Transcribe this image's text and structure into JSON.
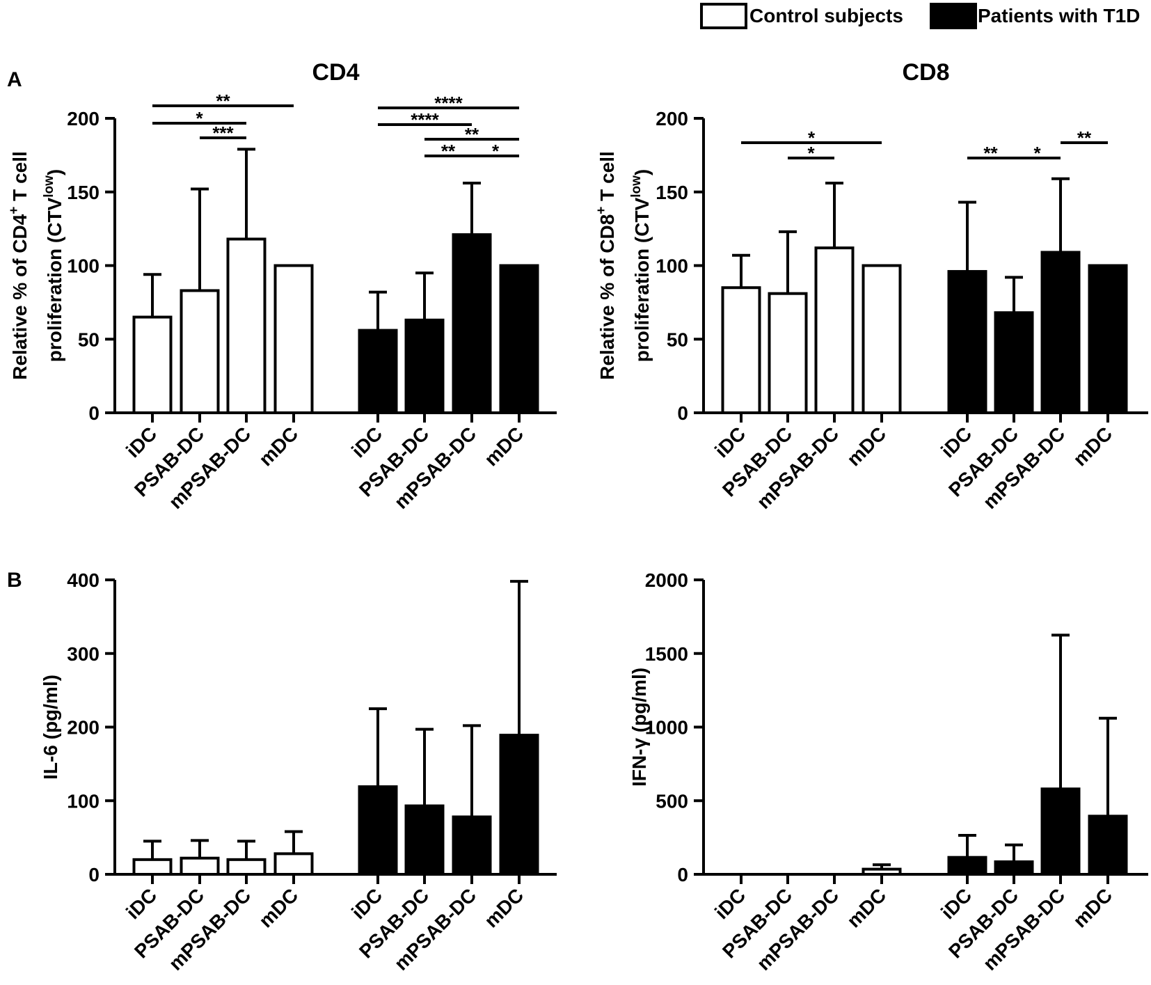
{
  "legend": {
    "placement": "top-right",
    "items": [
      {
        "label": "Control subjects",
        "fill": "#ffffff"
      },
      {
        "label": "Patients with T1D",
        "fill": "#000000"
      }
    ]
  },
  "panels": [
    {
      "letter": "A"
    },
    {
      "letter": "B"
    }
  ],
  "chart_data": [
    {
      "id": "cd4",
      "panel": "A",
      "type": "bar",
      "title": "CD4",
      "ylabel_line1": "Relative % of CD4",
      "ylabel_sup1": "+",
      "ylabel_line1_tail": " T cell",
      "ylabel_line2": "proliferation (CTV",
      "ylabel_sup2": "low",
      "ylabel_line2_tail": ")",
      "ylim": [
        0,
        200
      ],
      "ticks": [
        0,
        50,
        100,
        150,
        200
      ],
      "categories": [
        "iDC",
        "PSAB-DC",
        "mPSAB-DC",
        "mDC"
      ],
      "series": [
        {
          "name": "Control subjects",
          "values": [
            65,
            83,
            118,
            100
          ],
          "errors": [
            29,
            69,
            61,
            0
          ]
        },
        {
          "name": "Patients with T1D",
          "values": [
            56,
            63,
            121,
            100
          ],
          "errors": [
            26,
            32,
            35,
            0
          ]
        }
      ],
      "significance": [
        {
          "from": [
            0,
            0
          ],
          "to": [
            0,
            3
          ],
          "label": "**"
        },
        {
          "from": [
            0,
            0
          ],
          "to": [
            0,
            2
          ],
          "label": "*"
        },
        {
          "from": [
            0,
            1
          ],
          "to": [
            0,
            2
          ],
          "label": "***"
        },
        {
          "from": [
            1,
            0
          ],
          "to": [
            1,
            3
          ],
          "label": "****"
        },
        {
          "from": [
            1,
            0
          ],
          "to": [
            1,
            2
          ],
          "label": "****"
        },
        {
          "from": [
            1,
            1
          ],
          "to": [
            1,
            3
          ],
          "label": "**"
        },
        {
          "from": [
            1,
            1
          ],
          "to": [
            1,
            2
          ],
          "label": "**"
        },
        {
          "from": [
            1,
            2
          ],
          "to": [
            1,
            3
          ],
          "label": "*"
        }
      ]
    },
    {
      "id": "cd8",
      "panel": "A",
      "type": "bar",
      "title": "CD8",
      "ylabel_line1": "Relative % of CD8",
      "ylabel_sup1": "+",
      "ylabel_line1_tail": " T cell",
      "ylabel_line2": "proliferation (CTV",
      "ylabel_sup2": "low",
      "ylabel_line2_tail": ")",
      "ylim": [
        0,
        200
      ],
      "ticks": [
        0,
        50,
        100,
        150,
        200
      ],
      "categories": [
        "iDC",
        "PSAB-DC",
        "mPSAB-DC",
        "mDC"
      ],
      "series": [
        {
          "name": "Control subjects",
          "values": [
            85,
            81,
            112,
            100
          ],
          "errors": [
            22,
            42,
            44,
            0
          ]
        },
        {
          "name": "Patients with T1D",
          "values": [
            96,
            68,
            109,
            100
          ],
          "errors": [
            47,
            24,
            50,
            0
          ]
        }
      ],
      "significance": [
        {
          "from": [
            0,
            0
          ],
          "to": [
            0,
            3
          ],
          "label": "*"
        },
        {
          "from": [
            0,
            1
          ],
          "to": [
            0,
            2
          ],
          "label": "*"
        },
        {
          "from": [
            1,
            2
          ],
          "to": [
            1,
            3
          ],
          "label": "**"
        },
        {
          "from": [
            1,
            0
          ],
          "to": [
            1,
            1
          ],
          "label": "**"
        },
        {
          "from": [
            1,
            1
          ],
          "to": [
            1,
            2
          ],
          "label": "*"
        }
      ]
    },
    {
      "id": "il6",
      "panel": "B",
      "type": "bar",
      "title": "",
      "ylabel_line1": "IL-6 (pg/ml)",
      "ylim": [
        0,
        400
      ],
      "ticks": [
        0,
        100,
        200,
        300,
        400
      ],
      "categories": [
        "iDC",
        "PSAB-DC",
        "mPSAB-DC",
        "mDC"
      ],
      "series": [
        {
          "name": "Control subjects",
          "values": [
            20,
            22,
            20,
            28
          ],
          "errors": [
            25,
            24,
            25,
            30
          ]
        },
        {
          "name": "Patients with T1D",
          "values": [
            119,
            93,
            78,
            189
          ],
          "errors": [
            106,
            104,
            124,
            209
          ]
        }
      ],
      "significance": []
    },
    {
      "id": "ifng",
      "panel": "B",
      "type": "bar",
      "title": "",
      "ylabel_line1": "IFN-γ (pg/ml)",
      "ylim": [
        0,
        2000
      ],
      "ticks": [
        0,
        500,
        1000,
        1500,
        2000
      ],
      "categories": [
        "iDC",
        "PSAB-DC",
        "mPSAB-DC",
        "mDC"
      ],
      "series": [
        {
          "name": "Control subjects",
          "values": [
            0,
            0,
            0,
            35
          ],
          "errors": [
            0,
            0,
            0,
            30
          ]
        },
        {
          "name": "Patients with T1D",
          "values": [
            115,
            85,
            580,
            395
          ],
          "errors": [
            150,
            115,
            1045,
            665
          ]
        }
      ],
      "significance": []
    }
  ]
}
